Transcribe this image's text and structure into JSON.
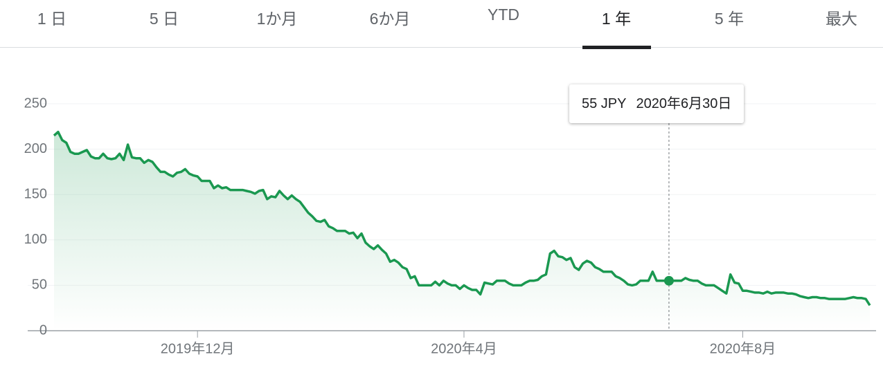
{
  "tabs": {
    "labels": [
      "1 日",
      "5 日",
      "1か月",
      "6か月",
      "YTD",
      "1 年",
      "5 年",
      "最大"
    ],
    "selected": 5
  },
  "chart_data": {
    "type": "line",
    "series": [
      {
        "color": "#1a9850",
        "values": [
          215,
          219,
          210,
          207,
          197,
          195,
          195,
          197,
          199,
          192,
          190,
          190,
          195,
          190,
          189,
          190,
          195,
          188,
          205,
          191,
          190,
          190,
          185,
          188,
          186,
          180,
          175,
          175,
          172,
          170,
          174,
          175,
          178,
          173,
          171,
          170,
          165,
          165,
          165,
          157,
          160,
          157,
          158,
          155,
          155,
          155,
          155,
          154,
          153,
          151,
          154,
          155,
          145,
          148,
          147,
          154,
          149,
          145,
          149,
          145,
          142,
          136,
          130,
          126,
          121,
          120,
          122,
          115,
          113,
          110,
          110,
          110,
          107,
          108,
          102,
          107,
          97,
          93,
          90,
          94,
          89,
          85,
          76,
          78,
          75,
          70,
          68,
          58,
          60,
          50,
          50,
          50,
          50,
          54,
          50,
          55,
          52,
          50,
          50,
          46,
          50,
          47,
          45,
          45,
          40,
          53,
          52,
          51,
          55,
          55,
          55,
          52,
          50,
          50,
          50,
          53,
          55,
          55,
          56,
          60,
          62,
          85,
          88,
          82,
          81,
          78,
          80,
          70,
          67,
          74,
          77,
          75,
          70,
          68,
          65,
          65,
          65,
          60,
          58,
          55,
          51,
          50,
          51,
          55,
          55,
          55,
          65,
          55,
          55,
          55,
          55,
          55,
          55,
          55,
          58,
          56,
          55,
          55,
          52,
          50,
          50,
          50,
          47,
          44,
          41,
          62,
          53,
          52,
          44,
          44,
          43,
          42,
          42,
          41,
          43,
          41,
          42,
          42,
          42,
          41,
          41,
          40,
          38,
          37,
          36,
          37,
          37,
          36,
          36,
          35,
          35,
          35,
          35,
          35,
          36,
          37,
          36,
          36,
          35,
          28
        ]
      }
    ],
    "xlim": [
      0,
      199
    ],
    "xticks": [
      {
        "value": 35,
        "label": "2019年12月"
      },
      {
        "value": 100,
        "label": "2020年4月"
      },
      {
        "value": 168,
        "label": "2020年8月"
      }
    ],
    "ylim": [
      0,
      250
    ],
    "yticks": [
      0,
      50,
      100,
      150,
      200,
      250
    ],
    "grid": true,
    "tooltip": {
      "x": 150,
      "value_label": "55 JPY",
      "date": "2020年6月30日"
    }
  }
}
